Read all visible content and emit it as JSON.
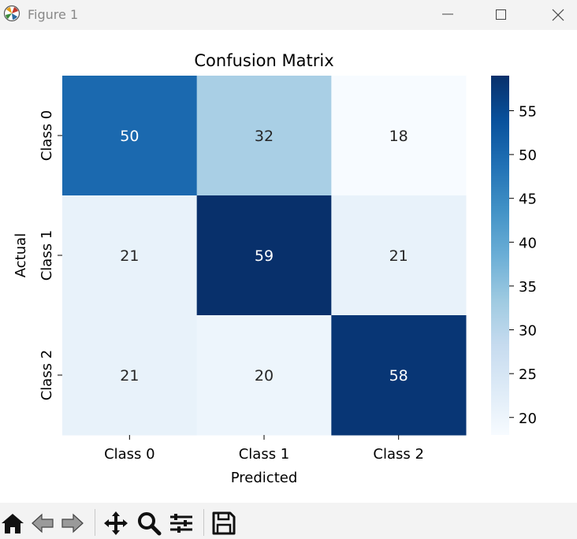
{
  "window": {
    "title": "Figure 1"
  },
  "toolbar": {
    "icons": [
      "home-icon",
      "back-arrow-icon",
      "forward-arrow-icon",
      "pan-icon",
      "zoom-icon",
      "configure-subplots-icon",
      "save-icon"
    ]
  },
  "chart_data": {
    "type": "heatmap",
    "title": "Confusion Matrix",
    "xlabel": "Predicted",
    "ylabel": "Actual",
    "x_categories": [
      "Class 0",
      "Class 1",
      "Class 2"
    ],
    "y_categories": [
      "Class 0",
      "Class 1",
      "Class 2"
    ],
    "values": [
      [
        50,
        32,
        18
      ],
      [
        21,
        59,
        21
      ],
      [
        21,
        20,
        58
      ]
    ],
    "colormap": "Blues",
    "colorbar": {
      "vmin": 18,
      "vmax": 59,
      "ticks": [
        20,
        25,
        30,
        35,
        40,
        45,
        50,
        55
      ]
    }
  }
}
